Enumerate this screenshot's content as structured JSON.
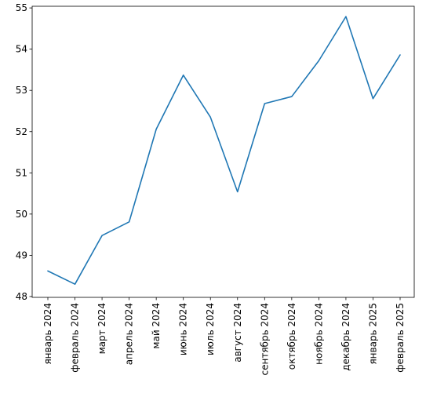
{
  "chart_data": {
    "type": "line",
    "title": "",
    "xlabel": "",
    "ylabel": "",
    "categories": [
      "январь 2024",
      "февраль 2024",
      "март 2024",
      "апрель 2024",
      "май 2024",
      "июнь 2024",
      "июль 2024",
      "август 2024",
      "сентябрь 2024",
      "октябрь 2024",
      "ноябрь 2024",
      "декабрь 2024",
      "январь 2025",
      "февраль 2025"
    ],
    "series": [
      {
        "values": [
          48.62,
          48.3,
          49.48,
          49.81,
          52.06,
          53.37,
          52.35,
          50.54,
          52.68,
          52.85,
          53.72,
          54.79,
          52.8,
          53.86
        ],
        "color": "#1f77b4"
      }
    ],
    "ylim": [
      47.98,
      55.04
    ],
    "yticks": [
      48,
      49,
      50,
      51,
      52,
      53,
      54,
      55
    ],
    "grid": false,
    "legend": "none"
  }
}
